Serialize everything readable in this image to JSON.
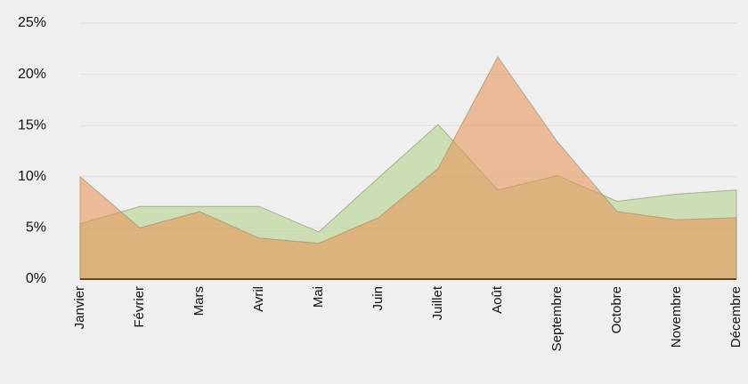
{
  "chart_data": {
    "type": "area",
    "categories": [
      "Janvier",
      "Février",
      "Mars",
      "Avril",
      "Mai",
      "Juin",
      "Juillet",
      "Août",
      "Septembre",
      "Octobre",
      "Novembre",
      "Décembre"
    ],
    "series": [
      {
        "color": "#b4d28c",
        "values": [
          5.4,
          7.1,
          7.1,
          7.1,
          4.6,
          9.9,
          15.1,
          8.7,
          10.1,
          7.6,
          8.3,
          8.7
        ]
      },
      {
        "color": "#e8965a",
        "values": [
          10,
          5.0,
          6.6,
          4.0,
          3.5,
          6.0,
          10.8,
          21.7,
          13.4,
          6.6,
          5.8,
          6.0
        ]
      }
    ],
    "ylim": [
      0,
      25
    ],
    "yticks": [
      {
        "value": 0,
        "label": "0%"
      },
      {
        "value": 5,
        "label": "5%"
      },
      {
        "value": 10,
        "label": "10%"
      },
      {
        "value": 15,
        "label": "15%"
      },
      {
        "value": 20,
        "label": "20%"
      },
      {
        "value": 25,
        "label": "25%"
      }
    ],
    "grid": true
  }
}
